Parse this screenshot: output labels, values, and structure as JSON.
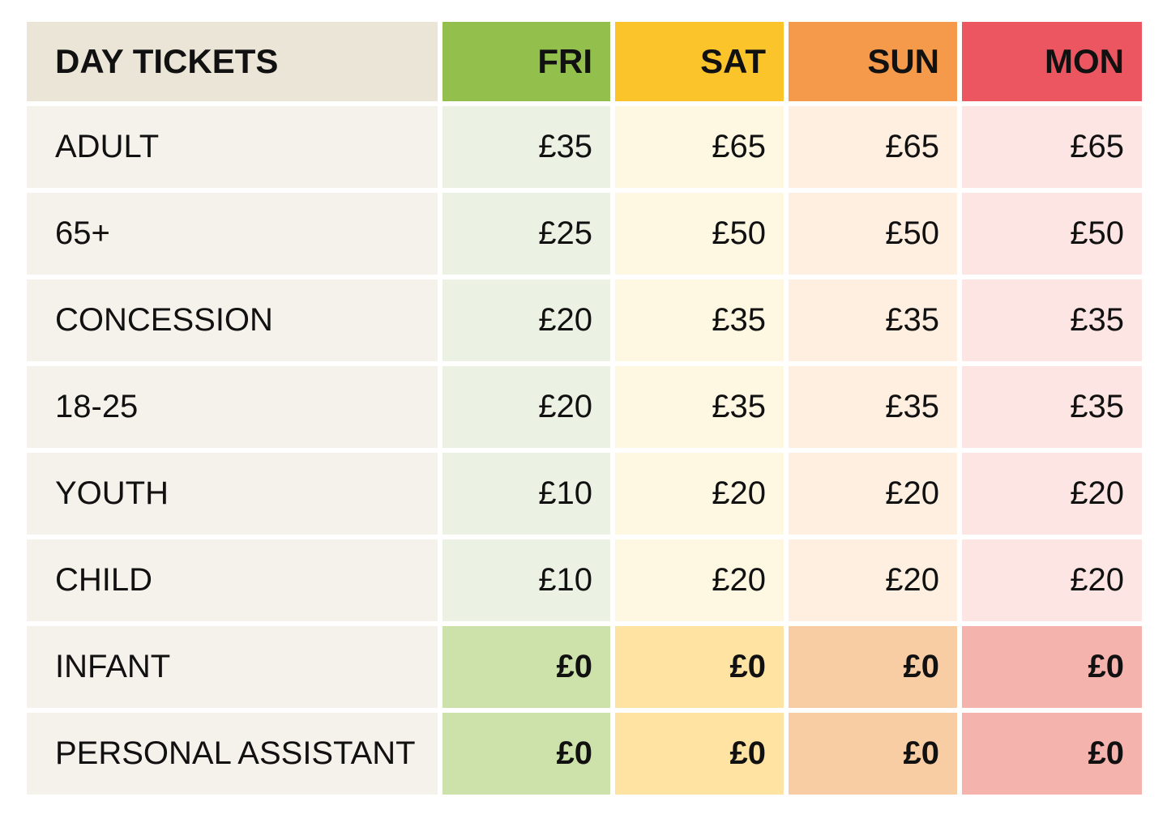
{
  "table": {
    "header": [
      "DAY TICKETS",
      "FRI",
      "SAT",
      "SUN",
      "MON"
    ],
    "rows": [
      {
        "label": "ADULT",
        "prices": [
          "£35",
          "£65",
          "£65",
          "£65"
        ]
      },
      {
        "label": "65+",
        "prices": [
          "£25",
          "£50",
          "£50",
          "£50"
        ]
      },
      {
        "label": "CONCESSION",
        "prices": [
          "£20",
          "£35",
          "£35",
          "£35"
        ]
      },
      {
        "label": "18-25",
        "prices": [
          "£20",
          "£35",
          "£35",
          "£35"
        ]
      },
      {
        "label": "YOUTH",
        "prices": [
          "£10",
          "£20",
          "£20",
          "£20"
        ]
      },
      {
        "label": "CHILD",
        "prices": [
          "£10",
          "£20",
          "£20",
          "£20"
        ]
      },
      {
        "label": "INFANT",
        "prices": [
          "£0",
          "£0",
          "£0",
          "£0"
        ]
      },
      {
        "label": "PERSONAL ASSISTANT",
        "prices": [
          "£0",
          "£0",
          "£0",
          "£0"
        ]
      }
    ]
  }
}
